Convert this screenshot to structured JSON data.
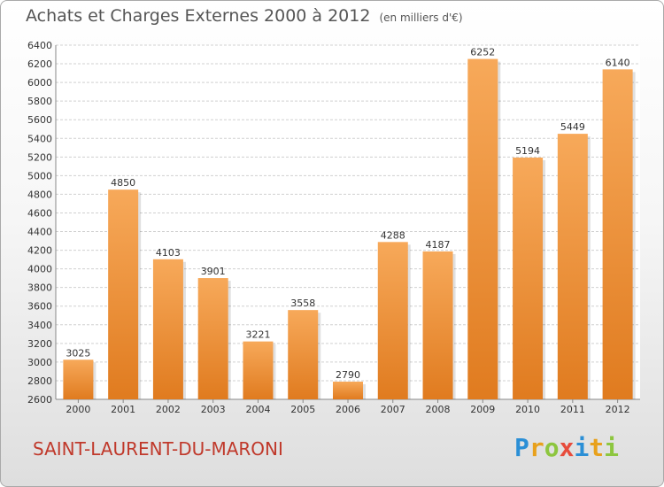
{
  "title": "Achats et Charges Externes 2000 à 2012",
  "unit": "(en milliers d'€)",
  "commune": "SAINT-LAURENT-DU-MARONI",
  "brand": {
    "letters": [
      "P",
      "r",
      "o",
      "x",
      "i",
      "t",
      "i"
    ],
    "colors": [
      "#2b8fd6",
      "#e8a11c",
      "#8dc63f",
      "#e74c3c",
      "#2b8fd6",
      "#e8a11c",
      "#8dc63f"
    ]
  },
  "colors": {
    "bar_light": "#f7a95a",
    "bar_dark": "#e07b1f",
    "grid": "#d0d0d0",
    "text": "#333333",
    "title": "#555555",
    "commune": "#c0392b"
  },
  "chart_data": {
    "type": "bar",
    "categories": [
      "2000",
      "2001",
      "2002",
      "2003",
      "2004",
      "2005",
      "2006",
      "2007",
      "2008",
      "2009",
      "2010",
      "2011",
      "2012"
    ],
    "values": [
      3025,
      4850,
      4103,
      3901,
      3221,
      3558,
      2790,
      4288,
      4187,
      6252,
      5194,
      5449,
      6140
    ],
    "ylim": [
      2600,
      6400
    ],
    "yticks": [
      2600,
      2800,
      3000,
      3200,
      3400,
      3600,
      3800,
      4000,
      4200,
      4400,
      4600,
      4800,
      5000,
      5200,
      5400,
      5600,
      5800,
      6000,
      6200,
      6400
    ],
    "grid": true,
    "title": "Achats et Charges Externes 2000 à 2012",
    "xlabel": "",
    "ylabel": ""
  }
}
